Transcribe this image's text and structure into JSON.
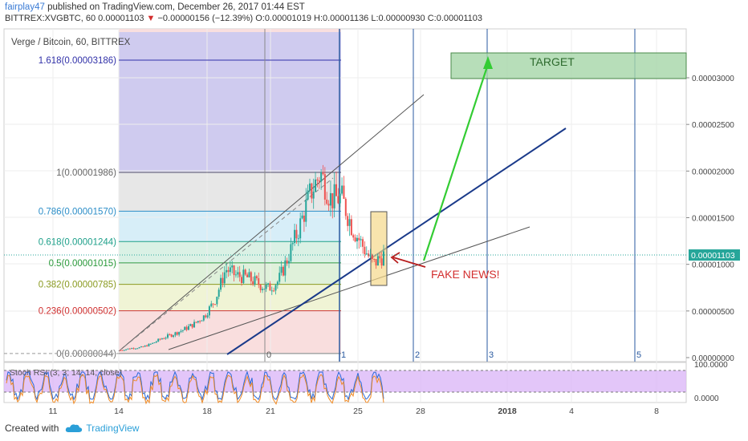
{
  "header": {
    "author": "fairplay47",
    "published": "published on TradingView.com, December 26, 2017 01:44 EST",
    "symbol": "BITTREX:XVGBTC, 60",
    "last": "0.00001103",
    "arrow": "▼",
    "change": "−0.00000156 (−12.39%)",
    "o": "O:0.00001019",
    "h": "H:0.00001136",
    "l": "L:0.00000930",
    "c": "C:0.00001103"
  },
  "chart_title": "Verge / Bitcoin, 60, BITTREX",
  "footer": {
    "created": "Created with",
    "brand": "TradingView"
  },
  "colors": {
    "candle_up": "#26a69a",
    "candle_down": "#ef5350",
    "trend_blue": "#1a3a8a",
    "arrow_green": "#33cc33",
    "arrow_red": "#b71c1c",
    "target_fill": "#a5d6a7",
    "highlight_box": "#f5d98a",
    "stoch_band": "#d9b3f7"
  },
  "chart_data": {
    "type": "candlestick",
    "y_axis": {
      "ticks": [
        "0.00003000",
        "0.00002500",
        "0.00002000",
        "0.00001500",
        "0.00001000",
        "0.00000500",
        "0.00000000"
      ],
      "current": "0.00001103"
    },
    "x_axis": {
      "ticks": [
        "11",
        "14",
        "18",
        "21",
        "25",
        "28",
        "2018",
        "4",
        "8"
      ]
    },
    "fib_levels": [
      {
        "label": "1.618(0.00003186)",
        "value": 3.186e-05,
        "color": "#3030a8"
      },
      {
        "label": "1(0.00001986)",
        "value": 1.986e-05,
        "color": "#666666"
      },
      {
        "label": "0.786(0.00001570)",
        "value": 1.57e-05,
        "color": "#2c8ec8"
      },
      {
        "label": "0.618(0.00001244)",
        "value": 1.244e-05,
        "color": "#1ea08a"
      },
      {
        "label": "0.5(0.00001015)",
        "value": 1.015e-05,
        "color": "#2a9a3a"
      },
      {
        "label": "0.382(0.00000785)",
        "value": 7.85e-06,
        "color": "#8a9a20"
      },
      {
        "label": "0.236(0.00000502)",
        "value": 5.02e-06,
        "color": "#d03030"
      },
      {
        "label": "0(0.00000044)",
        "value": 4.4e-07,
        "color": "#777777"
      }
    ],
    "time_zones": [
      "0",
      "1",
      "2",
      "3",
      "5"
    ],
    "annotations": {
      "target": "TARGET",
      "fake_news": "FAKE NEWS!"
    },
    "price_path": [
      [
        8e-07,
        8e-07
      ],
      [
        9e-07,
        1e-06
      ],
      [
        1e-06,
        1.1e-06
      ],
      [
        1.4e-06,
        1.5e-06
      ],
      [
        1.8e-06,
        2.1e-06
      ],
      [
        2.2e-06,
        2.5e-06
      ],
      [
        2.8e-06,
        3e-06
      ],
      [
        3.2e-06,
        3.6e-06
      ],
      [
        4e-06,
        4.5e-06
      ],
      [
        4.8e-06,
        6.2e-06
      ],
      [
        8e-06,
        9.5e-06
      ],
      [
        9.2e-06,
        8.8e-06
      ],
      [
        9e-06,
        8.6e-06
      ],
      [
        8.5e-06,
        8e-06
      ],
      [
        7.8e-06,
        7.4e-06
      ],
      [
        7.6e-06,
        8.2e-06
      ],
      [
        9e-06,
        1.1e-05
      ],
      [
        1.2e-05,
        1.4e-05
      ],
      [
        1.5e-05,
        1.75e-05
      ],
      [
        1.9e-05,
        1.98e-05
      ],
      [
        1.85e-05,
        1.7e-05
      ],
      [
        1.65e-05,
        1.72e-05
      ],
      [
        1.6e-05,
        1.4e-05
      ],
      [
        1.32e-05,
        1.2e-05
      ],
      [
        1.15e-05,
        1e-05
      ],
      [
        1.05e-05,
        1.1e-05
      ]
    ],
    "stoch_rsi": {
      "label": "Stoch RSI (3, 3, 14, 14, close)",
      "ticks": [
        "100.0000",
        "0.0000"
      ]
    }
  }
}
